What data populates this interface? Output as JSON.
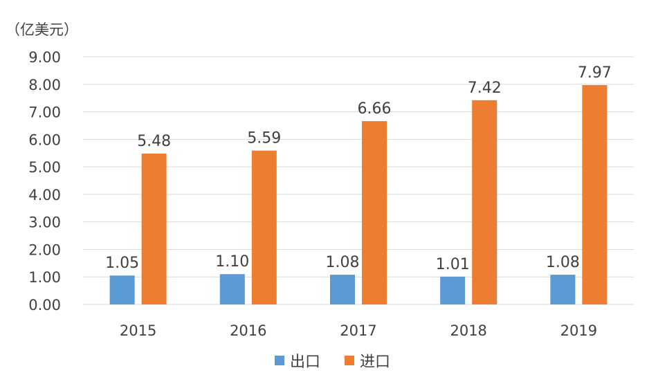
{
  "chart_data": {
    "type": "bar",
    "title": "",
    "ylabel": "（亿美元）",
    "xlabel": "",
    "categories": [
      "2015",
      "2016",
      "2017",
      "2018",
      "2019"
    ],
    "series": [
      {
        "name": "出口",
        "color": "#5B9BD5",
        "values": [
          1.05,
          1.1,
          1.08,
          1.01,
          1.08
        ],
        "labels": [
          "1.05",
          "1.10",
          "1.08",
          "1.01",
          "1.08"
        ]
      },
      {
        "name": "进口",
        "color": "#ED7D31",
        "values": [
          5.48,
          5.59,
          6.66,
          7.42,
          7.97
        ],
        "labels": [
          "5.48",
          "5.59",
          "6.66",
          "7.42",
          "7.97"
        ]
      }
    ],
    "ylim": [
      0,
      9
    ],
    "yticks": [
      "0.00",
      "1.00",
      "2.00",
      "3.00",
      "4.00",
      "5.00",
      "6.00",
      "7.00",
      "8.00",
      "9.00"
    ],
    "grid": true,
    "legend_position": "bottom"
  }
}
